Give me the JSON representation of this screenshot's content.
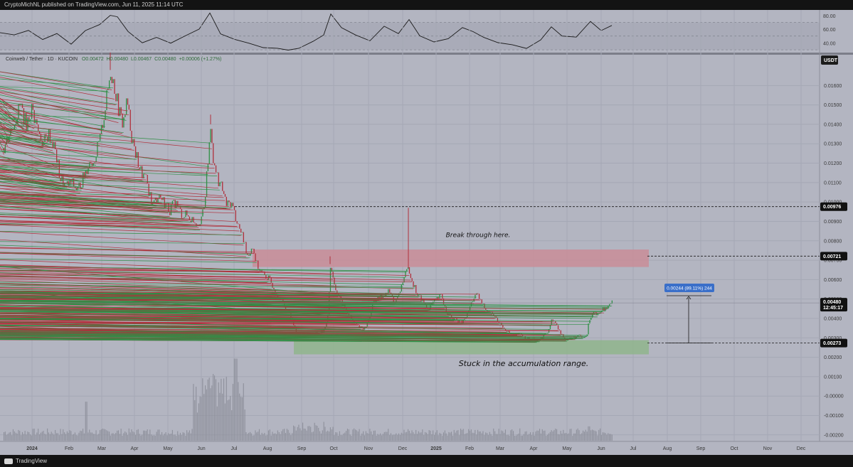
{
  "topbar": {
    "text": "CryptoMichNL published on TradingView.com, Jun 11, 2025 11:14 UTC"
  },
  "footer": {
    "brand": "TradingView"
  },
  "colors": {
    "up": "#2f8f46",
    "down": "#b0303c",
    "resistance_zone": "#c98d98",
    "support_zone": "#8fb58c",
    "badge_dark": "#111111",
    "badge_blue": "#3a6fc9",
    "pane": "#b3b5c1"
  },
  "chart_data": [
    {
      "type": "line",
      "role": "oscillator-pane",
      "yticks": [
        "80.00",
        "60.00",
        "40.00"
      ],
      "yticks_values": [
        80,
        60,
        40
      ],
      "ylim": [
        28,
        86
      ],
      "band": [
        30,
        70
      ],
      "x": [
        0,
        20,
        40,
        60,
        80,
        100,
        120,
        140,
        155,
        165,
        180,
        200,
        220,
        240,
        260,
        280,
        295,
        310,
        330,
        350,
        370,
        390,
        405,
        420,
        440,
        455,
        465,
        480,
        500,
        520,
        540,
        560,
        575,
        590,
        610,
        630,
        650,
        665,
        680,
        700,
        720,
        740,
        760,
        775,
        790,
        810,
        830,
        845,
        860
      ],
      "y": [
        55,
        50,
        60,
        45,
        52,
        40,
        58,
        65,
        82,
        78,
        55,
        42,
        48,
        38,
        52,
        60,
        82,
        55,
        45,
        38,
        35,
        32,
        28,
        34,
        42,
        50,
        84,
        62,
        50,
        45,
        64,
        52,
        76,
        50,
        40,
        48,
        62,
        55,
        50,
        40,
        36,
        34,
        44,
        62,
        52,
        48,
        70,
        60,
        65
      ]
    },
    {
      "type": "candlestick",
      "role": "price-pane",
      "header": {
        "symbol": "Coinweb / Tether · 1D · KUCOIN",
        "o": "O0.00472",
        "h": "H0.00480",
        "l": "L0.00467",
        "c": "C0.00480",
        "chg": "+0.00006 (+1.27%)"
      },
      "currency": "USDT",
      "yticks": [
        "0.01600",
        "0.01500",
        "0.01400",
        "0.01300",
        "0.01200",
        "0.01100",
        "0.01000",
        "0.00900",
        "0.00800",
        "0.00700",
        "0.00600",
        "0.00500",
        "0.00400",
        "0.00300",
        "0.00200",
        "0.00100",
        "-0.00000",
        "-0.00100",
        "-0.00200"
      ],
      "yticks_values": [
        0.016,
        0.015,
        0.014,
        0.013,
        0.012,
        0.011,
        0.01,
        0.009,
        0.008,
        0.007,
        0.006,
        0.005,
        0.004,
        0.003,
        0.002,
        0.001,
        0.0,
        -0.001,
        -0.002
      ],
      "ylim": [
        -0.0023,
        0.01755
      ],
      "xticks": [
        "2024",
        "Feb",
        "Mar",
        "Apr",
        "May",
        "Jun",
        "Jul",
        "Aug",
        "Sep",
        "Oct",
        "Nov",
        "Dec",
        "2025",
        "Feb",
        "Mar",
        "Apr",
        "May",
        "Jun",
        "Jul",
        "Aug",
        "Sep",
        "Oct",
        "Nov",
        "Dec"
      ],
      "xticks_pos": [
        45,
        97,
        143,
        189,
        236,
        283,
        329,
        376,
        424,
        469,
        518,
        566,
        613,
        660,
        703,
        750,
        797,
        845,
        890,
        938,
        985,
        1032,
        1079,
        1126
      ],
      "x_first_bar_pos": 5,
      "x_last_bar_pos": 860,
      "price_path": [
        [
          5,
          0.0128
        ],
        [
          12,
          0.0135
        ],
        [
          20,
          0.0142
        ],
        [
          28,
          0.015
        ],
        [
          36,
          0.014
        ],
        [
          44,
          0.0148
        ],
        [
          52,
          0.0138
        ],
        [
          60,
          0.013
        ],
        [
          68,
          0.0135
        ],
        [
          76,
          0.0128
        ],
        [
          84,
          0.0112
        ],
        [
          92,
          0.0108
        ],
        [
          100,
          0.011
        ],
        [
          108,
          0.0106
        ],
        [
          116,
          0.0112
        ],
        [
          124,
          0.012
        ],
        [
          132,
          0.0122
        ],
        [
          140,
          0.0132
        ],
        [
          148,
          0.015
        ],
        [
          155,
          0.0168
        ],
        [
          160,
          0.016
        ],
        [
          166,
          0.0148
        ],
        [
          172,
          0.014
        ],
        [
          178,
          0.0152
        ],
        [
          184,
          0.0135
        ],
        [
          190,
          0.0125
        ],
        [
          198,
          0.0115
        ],
        [
          206,
          0.011
        ],
        [
          214,
          0.0098
        ],
        [
          222,
          0.0104
        ],
        [
          230,
          0.01
        ],
        [
          238,
          0.0096
        ],
        [
          246,
          0.01
        ],
        [
          254,
          0.0094
        ],
        [
          262,
          0.0093
        ],
        [
          270,
          0.0091
        ],
        [
          278,
          0.0089
        ],
        [
          286,
          0.0095
        ],
        [
          292,
          0.0122
        ],
        [
          296,
          0.014
        ],
        [
          300,
          0.0118
        ],
        [
          306,
          0.0112
        ],
        [
          312,
          0.0106
        ],
        [
          318,
          0.0098
        ],
        [
          324,
          0.01
        ],
        [
          330,
          0.0093
        ],
        [
          336,
          0.0086
        ],
        [
          342,
          0.008
        ],
        [
          348,
          0.0072
        ],
        [
          354,
          0.0078
        ],
        [
          360,
          0.0068
        ],
        [
          366,
          0.0064
        ],
        [
          372,
          0.0062
        ],
        [
          378,
          0.006
        ],
        [
          386,
          0.0055
        ],
        [
          394,
          0.005
        ],
        [
          402,
          0.0045
        ],
        [
          410,
          0.004
        ],
        [
          418,
          0.003
        ],
        [
          424,
          0.0031
        ],
        [
          432,
          0.0032
        ],
        [
          440,
          0.0032
        ],
        [
          448,
          0.0033
        ],
        [
          456,
          0.0034
        ],
        [
          460,
          0.0042
        ],
        [
          464,
          0.0068
        ],
        [
          468,
          0.006
        ],
        [
          474,
          0.0052
        ],
        [
          480,
          0.0048
        ],
        [
          488,
          0.0043
        ],
        [
          496,
          0.0038
        ],
        [
          504,
          0.0036
        ],
        [
          512,
          0.0035
        ],
        [
          518,
          0.004
        ],
        [
          524,
          0.0048
        ],
        [
          530,
          0.005
        ],
        [
          538,
          0.0052
        ],
        [
          546,
          0.0054
        ],
        [
          554,
          0.0048
        ],
        [
          560,
          0.0052
        ],
        [
          566,
          0.006
        ],
        [
          574,
          0.0066
        ],
        [
          580,
          0.0058
        ],
        [
          586,
          0.0052
        ],
        [
          592,
          0.005
        ],
        [
          600,
          0.0045
        ],
        [
          608,
          0.0048
        ],
        [
          614,
          0.005
        ],
        [
          620,
          0.0052
        ],
        [
          626,
          0.0044
        ],
        [
          634,
          0.004
        ],
        [
          642,
          0.0039
        ],
        [
          650,
          0.0038
        ],
        [
          658,
          0.0044
        ],
        [
          664,
          0.005
        ],
        [
          670,
          0.0052
        ],
        [
          676,
          0.0048
        ],
        [
          682,
          0.0045
        ],
        [
          690,
          0.0043
        ],
        [
          698,
          0.0039
        ],
        [
          706,
          0.0036
        ],
        [
          714,
          0.0033
        ],
        [
          722,
          0.0031
        ],
        [
          730,
          0.0032
        ],
        [
          738,
          0.003
        ],
        [
          746,
          0.0029
        ],
        [
          754,
          0.0029
        ],
        [
          762,
          0.003
        ],
        [
          770,
          0.0034
        ],
        [
          776,
          0.004
        ],
        [
          782,
          0.0036
        ],
        [
          788,
          0.0032
        ],
        [
          796,
          0.0029
        ],
        [
          804,
          0.003
        ],
        [
          812,
          0.0031
        ],
        [
          818,
          0.003
        ],
        [
          824,
          0.0031
        ],
        [
          828,
          0.004
        ],
        [
          834,
          0.0044
        ],
        [
          840,
          0.0042
        ],
        [
          846,
          0.0046
        ],
        [
          852,
          0.0044
        ],
        [
          856,
          0.0047
        ],
        [
          860,
          0.0048
        ]
      ],
      "spikes": [
        {
          "x": 296,
          "high": 0.0145
        },
        {
          "x": 574,
          "high": 0.0097
        },
        {
          "x": 464,
          "high": 0.0072
        },
        {
          "x": 155,
          "high": 0.0177
        }
      ],
      "levels": [
        {
          "price": 0.00976,
          "label": "0.00976",
          "x_start": 330
        },
        {
          "price": 0.00721,
          "label": "0.00721",
          "x_start": 910
        },
        {
          "price": 0.0048,
          "label": "0.00480",
          "sublabel": "12:45:17",
          "x_start": 0,
          "current": true
        },
        {
          "price": 0.00273,
          "label": "0.00273",
          "x_start": 910
        }
      ],
      "zones": [
        {
          "type": "resistance",
          "from_x": 355,
          "to_x": 912,
          "low": 0.00665,
          "high": 0.00755
        },
        {
          "type": "support",
          "from_x": 413,
          "to_x": 912,
          "low": 0.00215,
          "high": 0.00288
        }
      ],
      "annotations": [
        {
          "text": "Break through here.",
          "x": 672,
          "price": 0.0082,
          "size": "small"
        },
        {
          "text": "Stuck in the accumulation range.",
          "x": 736,
          "price": 0.00155,
          "size": "big"
        }
      ],
      "measure": {
        "label": "0.00244 (89.11%) 244",
        "x": 968,
        "from": 0.00273,
        "to": 0.00517,
        "line_from_x": 937,
        "line_to_x": 1000
      },
      "volume_scale_top": 0.0024
    }
  ]
}
